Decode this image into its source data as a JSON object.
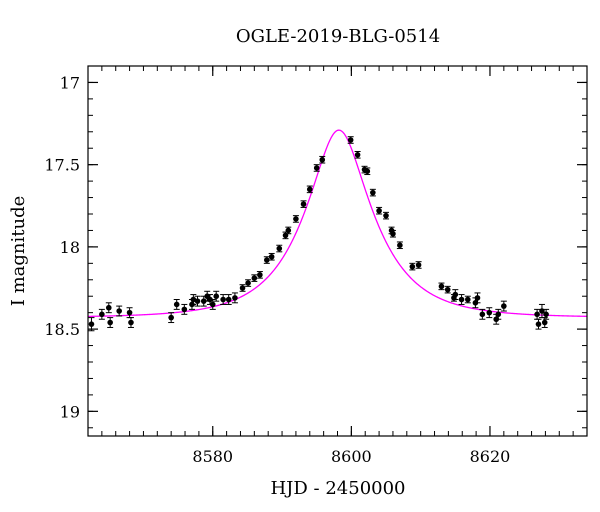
{
  "chart_data": {
    "type": "scatter",
    "title": "OGLE-2019-BLG-0514",
    "xlabel": "HJD - 2450000",
    "ylabel": "I magnitude",
    "xlim": [
      8562,
      8634
    ],
    "ylim": [
      19.15,
      16.9
    ],
    "y_inverted": true,
    "xticks": [
      8580,
      8600,
      8620
    ],
    "xtick_labels": [
      "8580",
      "8600",
      "8620"
    ],
    "yticks": [
      17,
      17.5,
      18,
      18.5,
      19
    ],
    "ytick_labels": [
      "17",
      "17.5",
      "18",
      "18.5",
      "19"
    ],
    "x_minor_step": 2,
    "y_minor_step": 0.1,
    "grid": false,
    "colors": {
      "points": "#000000",
      "model": "#ff00ff",
      "axes": "#000000"
    },
    "model": {
      "name": "",
      "t0": 8598.2,
      "u0": 0.4,
      "tE": 9.0,
      "baseline_mag": 18.43,
      "peak_mag": 17.29
    },
    "series": [
      {
        "name": "",
        "x": [
          8562.5,
          8564.0,
          8565.0,
          8565.2,
          8566.5,
          8568.0,
          8568.2,
          8574.0,
          8574.8,
          8575.9,
          8577.0,
          8577.2,
          8577.8,
          8578.7,
          8579.2,
          8579.6,
          8580.0,
          8580.5,
          8581.5,
          8582.3,
          8583.2,
          8584.3,
          8585.1,
          8586.0,
          8586.8,
          8587.8,
          8588.5,
          8589.6,
          8590.5,
          8590.9,
          8592.0,
          8593.1,
          8594.0,
          8595.0,
          8595.8,
          8599.9,
          8600.9,
          8601.9,
          8602.3,
          8603.1,
          8604.0,
          8605.0,
          8605.8,
          8606.0,
          8607.0,
          8608.8,
          8609.7,
          8613.0,
          8613.9,
          8614.8,
          8615.0,
          8615.9,
          8616.8,
          8617.9,
          8618.2,
          8618.9,
          8619.9,
          8620.9,
          8621.2,
          8622.0,
          8626.8,
          8627.0,
          8627.5,
          8627.9,
          8628.1
        ],
        "y": [
          18.47,
          18.41,
          18.37,
          18.46,
          18.39,
          18.4,
          18.46,
          18.43,
          18.35,
          18.38,
          18.35,
          18.32,
          18.33,
          18.33,
          18.3,
          18.32,
          18.35,
          18.3,
          18.32,
          18.32,
          18.31,
          18.25,
          18.22,
          18.19,
          18.17,
          18.08,
          18.06,
          18.01,
          17.93,
          17.9,
          17.83,
          17.74,
          17.65,
          17.52,
          17.47,
          17.35,
          17.44,
          17.53,
          17.54,
          17.67,
          17.78,
          17.81,
          17.9,
          17.92,
          17.99,
          18.12,
          18.11,
          18.24,
          18.26,
          18.31,
          18.29,
          18.32,
          18.32,
          18.34,
          18.31,
          18.41,
          18.4,
          18.44,
          18.41,
          18.36,
          18.41,
          18.47,
          18.39,
          18.46,
          18.41
        ],
        "err": [
          0.04,
          0.03,
          0.03,
          0.03,
          0.03,
          0.03,
          0.03,
          0.03,
          0.03,
          0.03,
          0.03,
          0.03,
          0.03,
          0.03,
          0.03,
          0.03,
          0.03,
          0.03,
          0.03,
          0.03,
          0.03,
          0.02,
          0.02,
          0.02,
          0.02,
          0.02,
          0.02,
          0.02,
          0.02,
          0.02,
          0.02,
          0.02,
          0.02,
          0.02,
          0.02,
          0.02,
          0.02,
          0.02,
          0.02,
          0.02,
          0.02,
          0.02,
          0.02,
          0.02,
          0.02,
          0.02,
          0.02,
          0.02,
          0.02,
          0.02,
          0.03,
          0.03,
          0.02,
          0.03,
          0.03,
          0.03,
          0.03,
          0.03,
          0.03,
          0.03,
          0.03,
          0.03,
          0.04,
          0.03,
          0.03
        ]
      }
    ]
  }
}
